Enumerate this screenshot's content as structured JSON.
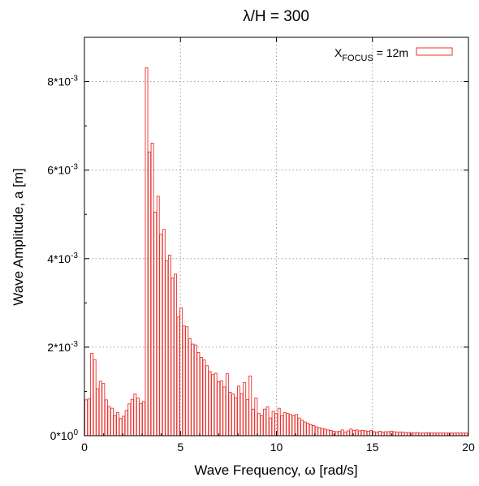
{
  "chart_data": {
    "type": "bar",
    "title": "λ/H = 300",
    "xlabel": "Wave Frequency,  ω  [rad/s]",
    "ylabel": "Wave Amplitude,  a  [m]",
    "xlim": [
      0,
      20
    ],
    "ylim": [
      0,
      0.009
    ],
    "grid": true,
    "legend_position": "top-right",
    "x_ticks": [
      "0",
      "5",
      "10",
      "15",
      "20"
    ],
    "y_ticks": [
      {
        "value": 0,
        "label_base": "0*10",
        "label_exp": "0"
      },
      {
        "value": 0.002,
        "label_base": "2*10",
        "label_exp": "-3"
      },
      {
        "value": 0.004,
        "label_base": "4*10",
        "label_exp": "-3"
      },
      {
        "value": 0.006,
        "label_base": "6*10",
        "label_exp": "-3"
      },
      {
        "value": 0.008,
        "label_base": "8*10",
        "label_exp": "-3"
      }
    ],
    "legend": {
      "base": "X",
      "subscript": "FOCUS",
      "suffix": " = 12m"
    },
    "series_color": "#e8332f",
    "bin_width": 0.15,
    "bin_start": 0,
    "values": [
      0.00081,
      0.00083,
      0.00186,
      0.00172,
      0.00106,
      0.00123,
      0.00118,
      0.00081,
      0.00066,
      0.00062,
      0.00045,
      0.00052,
      0.00039,
      0.00044,
      0.00057,
      0.00072,
      0.00082,
      0.00094,
      0.00085,
      0.00073,
      0.00077,
      0.00831,
      0.00641,
      0.00661,
      0.00505,
      0.00541,
      0.00455,
      0.00466,
      0.00395,
      0.00408,
      0.00356,
      0.00365,
      0.00268,
      0.00289,
      0.00248,
      0.00246,
      0.00219,
      0.00207,
      0.00205,
      0.00188,
      0.00177,
      0.00171,
      0.00158,
      0.00145,
      0.00138,
      0.00141,
      0.00122,
      0.00124,
      0.0011,
      0.0014,
      0.00098,
      0.00094,
      0.00086,
      0.00112,
      0.00095,
      0.0012,
      0.00082,
      0.00135,
      0.0006,
      0.00085,
      0.0005,
      0.00045,
      0.0006,
      0.00065,
      0.0004,
      0.00055,
      0.0005,
      0.00062,
      0.00045,
      0.00052,
      0.0005,
      0.00048,
      0.00045,
      0.00048,
      0.0004,
      0.00035,
      0.00031,
      0.00028,
      0.00025,
      0.00023,
      0.0002,
      0.00018,
      0.00016,
      0.00015,
      0.00013,
      0.00012,
      0.0001,
      9e-05,
      0.0001,
      0.00013,
      8e-05,
      0.00011,
      0.00015,
      0.00012,
      0.00013,
      0.00011,
      0.00012,
      0.00011,
      0.0001,
      0.00012,
      9e-05,
      8e-05,
      0.0001,
      8e-05,
      9e-05,
      9e-05,
      0.0001,
      9e-05,
      8e-05,
      8e-05,
      8e-05,
      7e-05,
      7e-05,
      7e-05,
      6e-05,
      7e-05,
      6e-05,
      6e-05,
      6e-05,
      7e-05,
      6e-05,
      6e-05,
      6e-05,
      6e-05,
      6e-05,
      6e-05,
      6e-05,
      6e-05,
      6e-05,
      6e-05,
      6e-05,
      6e-05,
      6e-05
    ]
  }
}
